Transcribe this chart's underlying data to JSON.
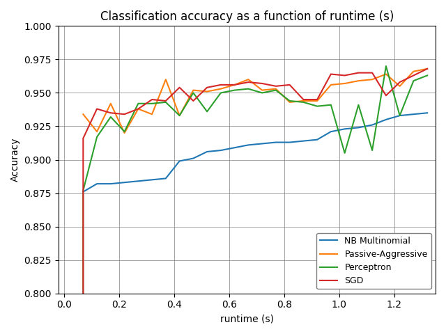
{
  "title": "Classification accuracy as a function of runtime (s)",
  "xlabel": "runtime (s)",
  "ylabel": "Accuracy",
  "ylim": [
    0.8,
    1.0
  ],
  "xlim": [
    -0.02,
    1.35
  ],
  "xticks": [
    0.0,
    0.2,
    0.4,
    0.6,
    0.8,
    1.0,
    1.2
  ],
  "yticks": [
    0.8,
    0.825,
    0.85,
    0.875,
    0.9,
    0.925,
    0.95,
    0.975,
    1.0
  ],
  "grid": true,
  "background_color": "#ffffff",
  "series": {
    "NB Multinomial": {
      "color": "#1f77b4",
      "x": [
        0.07,
        0.12,
        0.17,
        0.22,
        0.27,
        0.32,
        0.37,
        0.42,
        0.47,
        0.52,
        0.57,
        0.62,
        0.67,
        0.72,
        0.77,
        0.82,
        0.87,
        0.92,
        0.97,
        1.02,
        1.07,
        1.12,
        1.17,
        1.22,
        1.27,
        1.32
      ],
      "y": [
        0.876,
        0.882,
        0.882,
        0.883,
        0.884,
        0.885,
        0.886,
        0.899,
        0.901,
        0.906,
        0.907,
        0.909,
        0.911,
        0.912,
        0.913,
        0.913,
        0.914,
        0.915,
        0.921,
        0.923,
        0.924,
        0.926,
        0.93,
        0.933,
        0.934,
        0.935
      ]
    },
    "Passive-Aggressive": {
      "color": "#ff7f0e",
      "x": [
        0.07,
        0.12,
        0.17,
        0.22,
        0.27,
        0.32,
        0.37,
        0.42,
        0.47,
        0.52,
        0.57,
        0.62,
        0.67,
        0.72,
        0.77,
        0.82,
        0.87,
        0.92,
        0.97,
        1.02,
        1.07,
        1.12,
        1.17,
        1.22,
        1.27,
        1.32
      ],
      "y": [
        0.934,
        0.921,
        0.942,
        0.92,
        0.938,
        0.934,
        0.96,
        0.933,
        0.952,
        0.951,
        0.953,
        0.956,
        0.96,
        0.952,
        0.953,
        0.943,
        0.944,
        0.944,
        0.956,
        0.957,
        0.959,
        0.96,
        0.964,
        0.955,
        0.966,
        0.968
      ]
    },
    "Perceptron": {
      "color": "#2ca02c",
      "x": [
        0.07,
        0.07,
        0.12,
        0.17,
        0.22,
        0.27,
        0.32,
        0.37,
        0.42,
        0.47,
        0.52,
        0.57,
        0.62,
        0.67,
        0.72,
        0.77,
        0.82,
        0.87,
        0.92,
        0.97,
        1.02,
        1.07,
        1.12,
        1.17,
        1.22,
        1.27,
        1.32
      ],
      "y": [
        0.8,
        0.877,
        0.917,
        0.932,
        0.921,
        0.942,
        0.942,
        0.943,
        0.933,
        0.95,
        0.936,
        0.95,
        0.952,
        0.953,
        0.95,
        0.952,
        0.944,
        0.943,
        0.94,
        0.941,
        0.905,
        0.941,
        0.907,
        0.97,
        0.933,
        0.959,
        0.963
      ]
    },
    "SGD": {
      "color": "#d62728",
      "x": [
        0.07,
        0.07,
        0.12,
        0.17,
        0.22,
        0.27,
        0.32,
        0.37,
        0.42,
        0.47,
        0.52,
        0.57,
        0.62,
        0.67,
        0.72,
        0.77,
        0.82,
        0.87,
        0.92,
        0.97,
        1.02,
        1.07,
        1.12,
        1.17,
        1.22,
        1.27,
        1.32
      ],
      "y": [
        0.8,
        0.916,
        0.938,
        0.935,
        0.934,
        0.938,
        0.945,
        0.944,
        0.954,
        0.944,
        0.954,
        0.956,
        0.956,
        0.958,
        0.957,
        0.955,
        0.956,
        0.945,
        0.945,
        0.964,
        0.963,
        0.965,
        0.965,
        0.948,
        0.958,
        0.963,
        0.968
      ]
    }
  }
}
